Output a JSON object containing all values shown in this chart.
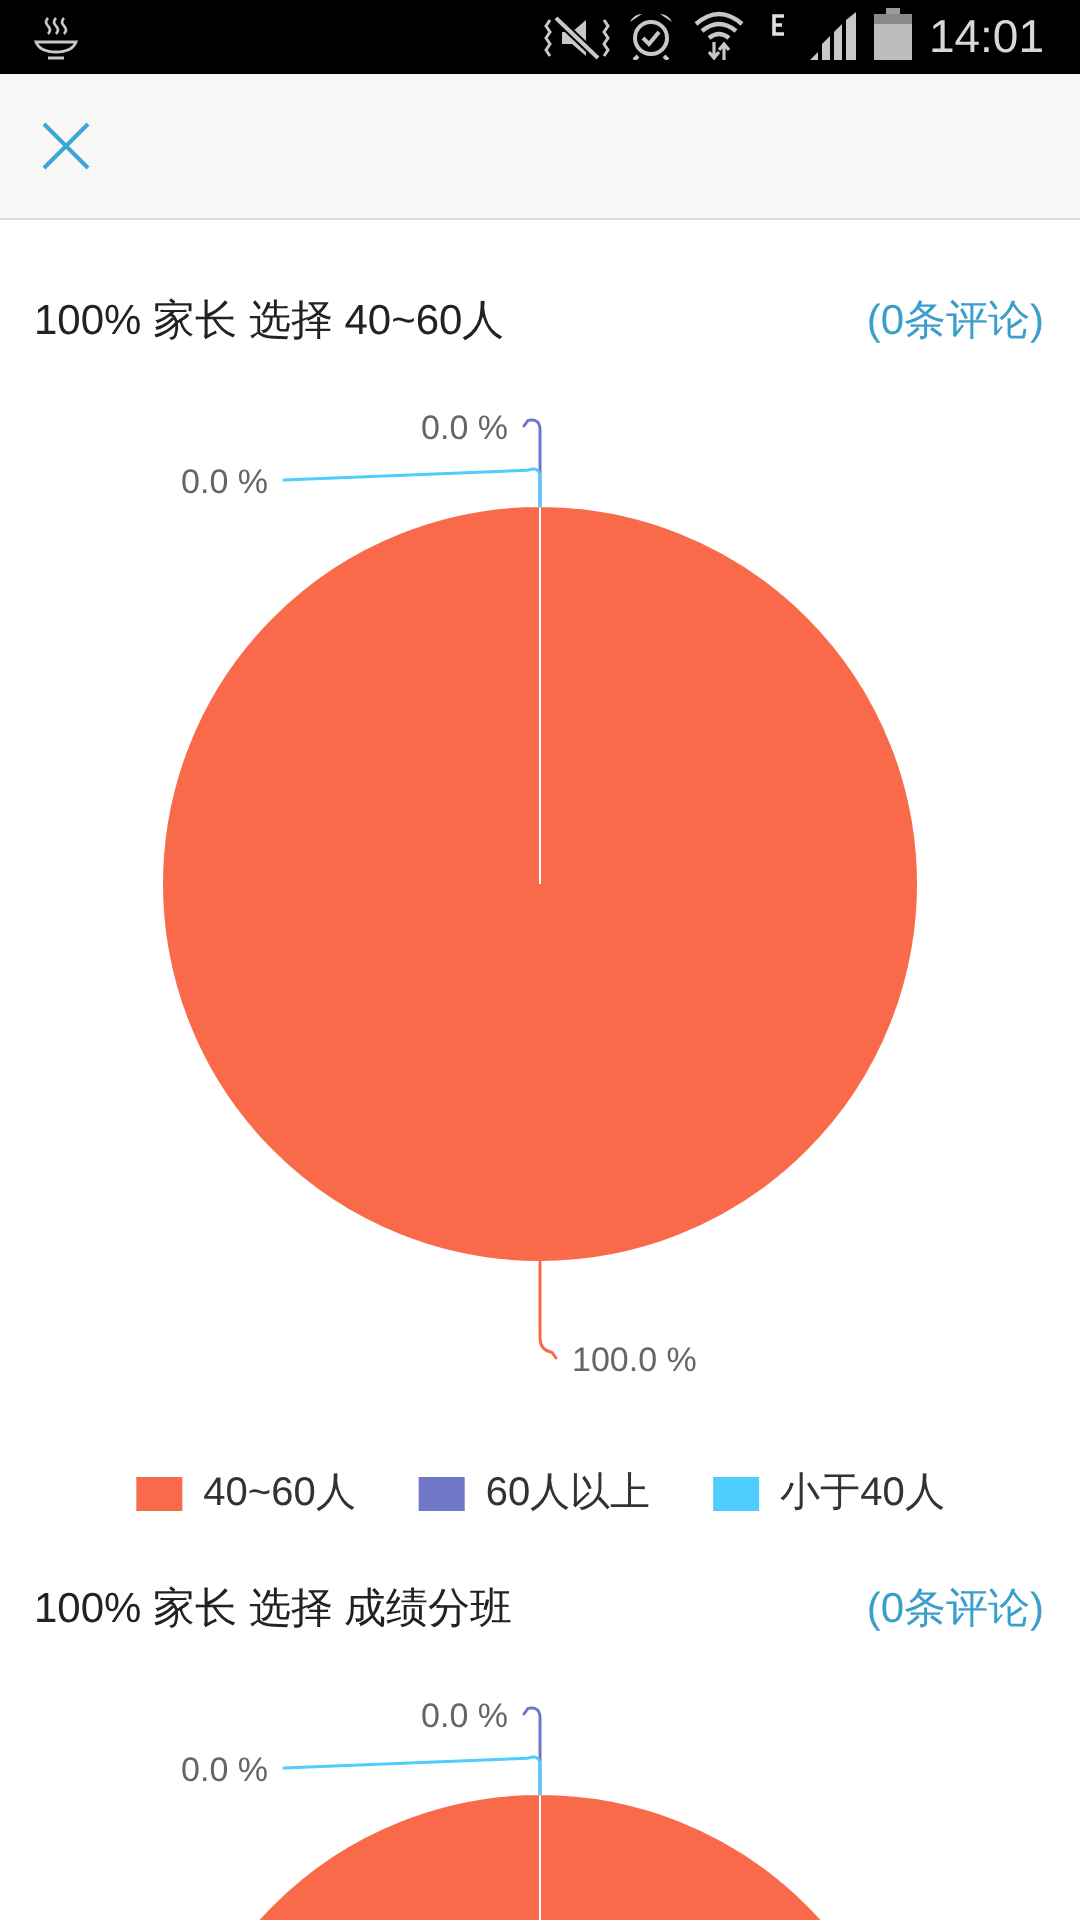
{
  "chart_data": [
    {
      "type": "pie",
      "title": "100% 家长 选择 40~60人",
      "categories": [
        "40~60人",
        "60人以上",
        "小于40人"
      ],
      "values": [
        100,
        0,
        0
      ],
      "colors": [
        "#f96a4a",
        "#6f78c8",
        "#4fcdfc"
      ],
      "value_labels": [
        "100.0 %",
        "0.0 %",
        "0.0 %"
      ],
      "legend": "bottom",
      "annotations": [
        "(0条评论)",
        "14:01"
      ]
    },
    {
      "type": "pie",
      "title": "100% 家长 选择 成绩分班",
      "categories": [
        null,
        null,
        null
      ],
      "values": [
        100,
        0,
        0
      ],
      "colors": [
        "#f96a4a",
        "#6f78c8",
        "#4fcdfc"
      ],
      "value_labels": [
        null,
        "0.0 %",
        "0.0 %"
      ],
      "annotations": [
        "(0条评论)"
      ]
    }
  ]
}
